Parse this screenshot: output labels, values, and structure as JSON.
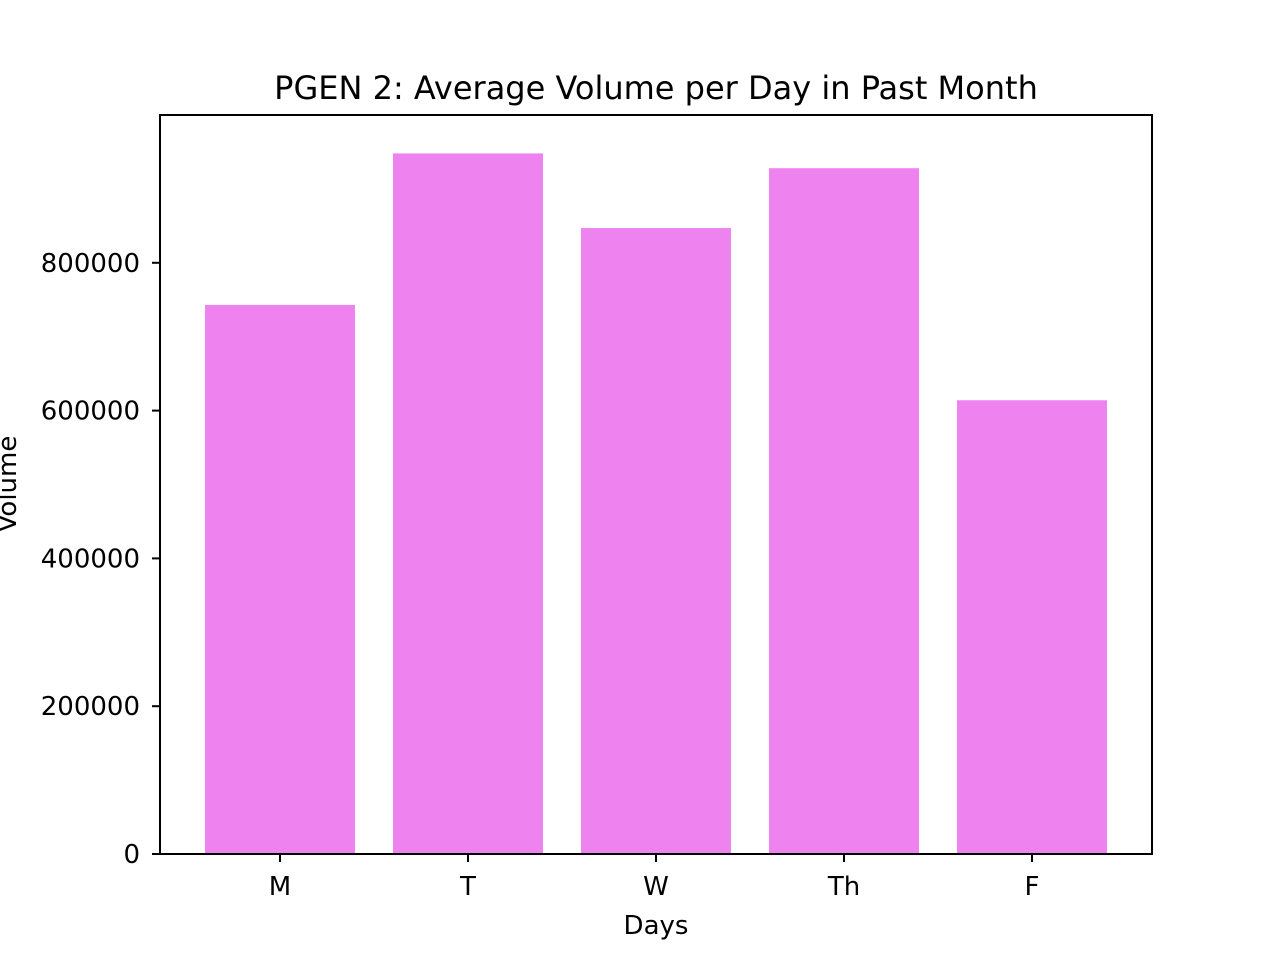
{
  "chart_data": {
    "type": "bar",
    "title": "PGEN 2: Average Volume per Day in Past Month",
    "xlabel": "Days",
    "ylabel": "Volume",
    "categories": [
      "M",
      "T",
      "W",
      "Th",
      "F"
    ],
    "values": [
      743000,
      948000,
      847000,
      928000,
      614000
    ],
    "ylim": [
      0,
      1000000
    ],
    "yticks": [
      0,
      200000,
      400000,
      600000,
      800000
    ],
    "ytick_labels": [
      "0",
      "200000",
      "400000",
      "600000",
      "800000"
    ],
    "bar_color": "#ee82ee",
    "grid": false
  }
}
